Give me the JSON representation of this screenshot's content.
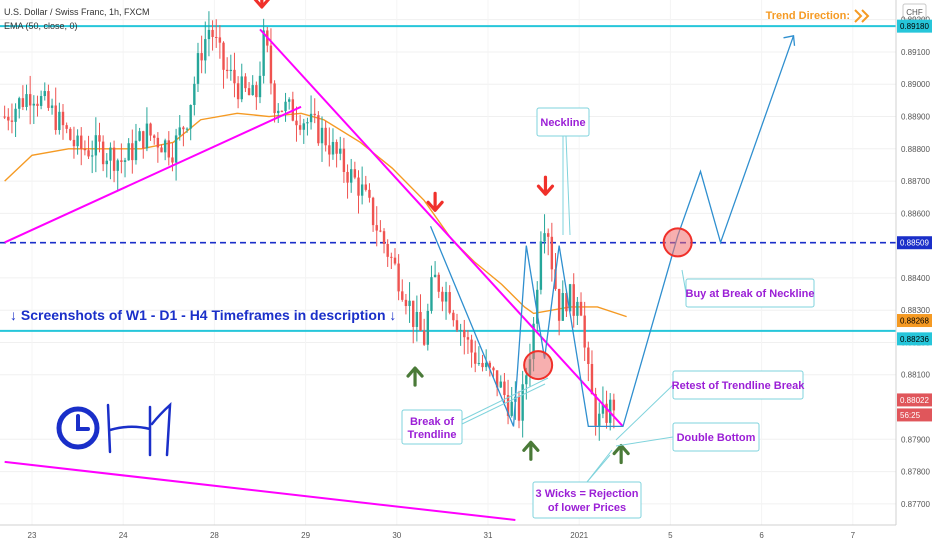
{
  "header": {
    "symbol_line": "U.S. Dollar / Swiss Franc, 1h, FXCM",
    "indicator_line": "EMA (50, close, 0)",
    "currency_badge": "CHF",
    "trend_direction_label": "Trend Direction:",
    "trend_icon": "double-chevron-right-icon"
  },
  "chart_data": {
    "type": "candlestick",
    "instrument": "U.S. Dollar / Swiss Franc",
    "timeframe": "1h",
    "y_range": [
      0.8765,
      0.8923
    ],
    "y_ticks": [
      "0.89200",
      "0.89100",
      "0.89000",
      "0.88900",
      "0.88800",
      "0.88700",
      "0.88600",
      "0.88400",
      "0.88300",
      "0.88200",
      "0.88100",
      "0.87900",
      "0.87800",
      "0.87700"
    ],
    "x_ticks": [
      "23",
      "24",
      "28",
      "29",
      "30",
      "31",
      "2021",
      "5",
      "6",
      "7"
    ],
    "x_tick_days": [
      0,
      1,
      2,
      3,
      4,
      5,
      6,
      7,
      8,
      9
    ],
    "price_tags": [
      {
        "label": "0.89180",
        "value": 0.8918,
        "color": "#26c6da",
        "text_color": "#000000"
      },
      {
        "label": "0.88509",
        "value": 0.88509,
        "color": "#1a2fc9",
        "text_color": "#ffffff"
      },
      {
        "label": "0.88268",
        "value": 0.88268,
        "color": "#f59a23",
        "text_color": "#000000"
      },
      {
        "label": "0.88236",
        "value": 0.88236,
        "color": "#26c6da",
        "text_color": "#000000"
      },
      {
        "label": "0.88022",
        "value": 0.88022,
        "color": "#e0565b",
        "text_color": "#ffffff"
      },
      {
        "label": "56:25",
        "value": 0.87982,
        "color": "#e0565b",
        "text_color": "#ffffff"
      }
    ],
    "horizontal_levels": [
      {
        "name": "resistance",
        "value": 0.8918,
        "color": "#26c6da",
        "style": "solid"
      },
      {
        "name": "neckline",
        "value": 0.88509,
        "color": "#1a2fc9",
        "style": "dashed"
      },
      {
        "name": "support",
        "value": 0.88236,
        "color": "#26c6da",
        "style": "solid"
      }
    ],
    "trendlines": [
      {
        "name": "rising-trendline",
        "points": [
          [
            -0.3,
            0.8851
          ],
          [
            2.95,
            0.8893
          ]
        ],
        "color": "#ff00ff"
      },
      {
        "name": "falling-trendline",
        "points": [
          [
            2.5,
            0.8917
          ],
          [
            6.48,
            0.8794
          ]
        ],
        "color": "#ff00ff"
      },
      {
        "name": "lower-trendline",
        "points": [
          [
            -0.3,
            0.8783
          ],
          [
            5.3,
            0.8765
          ]
        ],
        "color": "#ff00ff"
      }
    ],
    "pattern_path": [
      [
        4.37,
        0.8856
      ],
      [
        5.28,
        0.8794
      ],
      [
        5.42,
        0.885
      ],
      [
        5.62,
        0.8815
      ],
      [
        5.78,
        0.885
      ],
      [
        6.1,
        0.8794
      ],
      [
        6.48,
        0.8794
      ],
      [
        7.08,
        0.8853
      ],
      [
        7.33,
        0.8873
      ],
      [
        7.55,
        0.8851
      ],
      [
        8.35,
        0.8915
      ]
    ],
    "ema": {
      "name": "EMA (50, close, 0)",
      "color": "#f59a23",
      "points": [
        [
          -0.3,
          0.887
        ],
        [
          0,
          0.8878
        ],
        [
          0.4,
          0.888
        ],
        [
          0.8,
          0.888
        ],
        [
          1.2,
          0.888
        ],
        [
          1.55,
          0.8882
        ],
        [
          1.85,
          0.8889
        ],
        [
          2.25,
          0.8891
        ],
        [
          2.6,
          0.889
        ],
        [
          2.95,
          0.8891
        ],
        [
          3.2,
          0.8889
        ],
        [
          3.6,
          0.8882
        ],
        [
          3.95,
          0.8874
        ],
        [
          4.3,
          0.8864
        ],
        [
          4.6,
          0.8852
        ],
        [
          4.85,
          0.8845
        ],
        [
          5.15,
          0.8838
        ],
        [
          5.4,
          0.8831
        ],
        [
          5.5,
          0.8829
        ],
        [
          5.9,
          0.8831
        ],
        [
          6.2,
          0.8831
        ],
        [
          6.52,
          0.8828
        ]
      ]
    },
    "candles_anchor": [
      [
        -0.3,
        0.889
      ],
      [
        0.0,
        0.8898
      ],
      [
        0.25,
        0.889
      ],
      [
        0.5,
        0.888
      ],
      [
        0.75,
        0.888
      ],
      [
        1.0,
        0.8876
      ],
      [
        1.25,
        0.8885
      ],
      [
        1.55,
        0.888
      ],
      [
        1.7,
        0.889
      ],
      [
        1.85,
        0.891
      ],
      [
        1.95,
        0.8918
      ],
      [
        2.1,
        0.8905
      ],
      [
        2.3,
        0.8898
      ],
      [
        2.45,
        0.8895
      ],
      [
        2.55,
        0.8915
      ],
      [
        2.65,
        0.8895
      ],
      [
        2.8,
        0.8892
      ],
      [
        2.95,
        0.889
      ],
      [
        3.2,
        0.8884
      ],
      [
        3.4,
        0.8875
      ],
      [
        3.6,
        0.8868
      ],
      [
        3.75,
        0.8858
      ],
      [
        3.95,
        0.8845
      ],
      [
        4.1,
        0.8835
      ],
      [
        4.2,
        0.8826
      ],
      [
        4.3,
        0.8821
      ],
      [
        4.4,
        0.884
      ],
      [
        4.55,
        0.8835
      ],
      [
        4.65,
        0.8828
      ],
      [
        4.8,
        0.8818
      ],
      [
        4.95,
        0.8812
      ],
      [
        5.1,
        0.8808
      ],
      [
        5.25,
        0.88
      ],
      [
        5.35,
        0.8798
      ],
      [
        5.5,
        0.8825
      ],
      [
        5.58,
        0.8855
      ],
      [
        5.64,
        0.886
      ],
      [
        5.7,
        0.8845
      ],
      [
        5.78,
        0.883
      ],
      [
        5.88,
        0.8835
      ],
      [
        5.95,
        0.883
      ],
      [
        6.0,
        0.884
      ],
      [
        6.05,
        0.882
      ],
      [
        6.12,
        0.8805
      ],
      [
        6.2,
        0.8795
      ],
      [
        6.3,
        0.8798
      ],
      [
        6.4,
        0.8802
      ]
    ],
    "markers": [
      {
        "name": "top-arrow-1",
        "type": "arrow-down",
        "x": 2.52,
        "y": 0.8923,
        "color": "#f0302a"
      },
      {
        "name": "top-arrow-2",
        "type": "arrow-down",
        "x": 4.42,
        "y": 0.886,
        "color": "#f0302a"
      },
      {
        "name": "top-arrow-3",
        "type": "arrow-down",
        "x": 5.63,
        "y": 0.8865,
        "color": "#f0302a"
      },
      {
        "name": "bottom-arrow-1",
        "type": "arrow-up",
        "x": 4.2,
        "y": 0.8813,
        "color": "#4a7a38"
      },
      {
        "name": "bottom-arrow-2",
        "type": "arrow-up",
        "x": 5.47,
        "y": 0.879,
        "color": "#4a7a38"
      },
      {
        "name": "bottom-arrow-3",
        "type": "arrow-up",
        "x": 6.46,
        "y": 0.8789,
        "color": "#4a7a38"
      }
    ],
    "circles": [
      {
        "name": "break-circle",
        "x": 5.55,
        "y": 0.8813,
        "color": "#f0302a"
      },
      {
        "name": "neckline-circle",
        "x": 7.08,
        "y": 0.8851,
        "color": "#f0302a"
      }
    ]
  },
  "annotations": {
    "neckline": "Neckline",
    "buy_at_break": "Buy at Break of Neckline",
    "retest": "Retest of Trendline Break",
    "double_bottom": "Double Bottom",
    "three_wicks_line1": "3 Wicks = Rejection",
    "three_wicks_line2": "of lower Prices",
    "break_line1": "Break of",
    "break_line2": "Trendline",
    "screenshots_note": "↓ Screenshots of W1 - D1 - H4 Timeframes in description ↓",
    "timeframe_drawing": "H1",
    "clock_icon": "clock-icon"
  }
}
